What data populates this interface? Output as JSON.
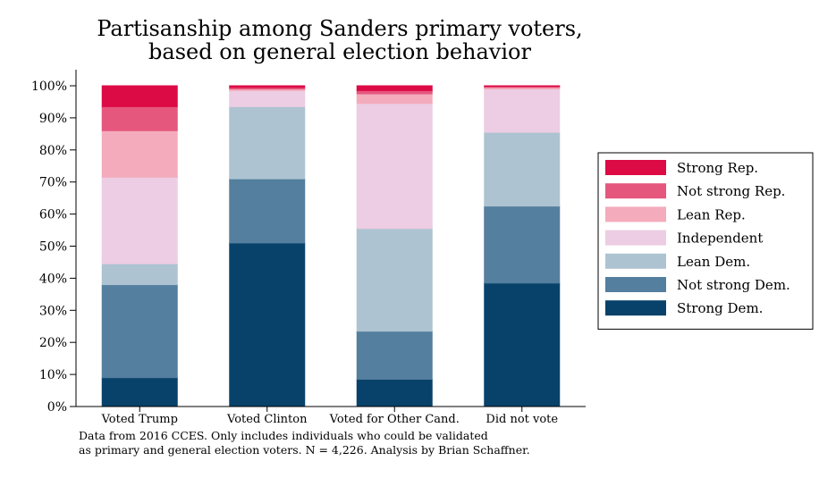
{
  "title_line1": "Partisanship among Sanders primary voters,",
  "title_line2": "based on general election behavior",
  "note_line1": "Data from 2016 CCES. Only includes individuals who could be validated",
  "note_line2": "as primary and general election voters. N = 4,226. Analysis by Brian Schaffner.",
  "chart_data": {
    "type": "bar",
    "stacked": true,
    "categories": [
      "Voted Trump",
      "Voted Clinton",
      "Voted for Other Cand.",
      "Did not vote"
    ],
    "ylim": [
      0,
      100
    ],
    "yticks": [
      "0%",
      "10%",
      "20%",
      "30%",
      "40%",
      "50%",
      "60%",
      "70%",
      "80%",
      "90%",
      "100%"
    ],
    "legend_position": "right",
    "series": [
      {
        "name": "Strong Dem.",
        "color": "#08426a",
        "values": [
          9,
          51,
          8.5,
          38.5
        ]
      },
      {
        "name": "Not strong Dem.",
        "color": "#547f9e",
        "values": [
          29,
          20,
          15,
          24
        ]
      },
      {
        "name": "Lean Dem.",
        "color": "#adc3d1",
        "values": [
          6.5,
          22.5,
          32,
          23
        ]
      },
      {
        "name": "Independent",
        "color": "#eccde3",
        "values": [
          27,
          5,
          39,
          13.5
        ]
      },
      {
        "name": "Lean Rep.",
        "color": "#f4abbc",
        "values": [
          14.5,
          0.5,
          3,
          0.5
        ]
      },
      {
        "name": "Not strong Rep.",
        "color": "#e5577d",
        "values": [
          7.5,
          0.5,
          1,
          0.3
        ]
      },
      {
        "name": "Strong Rep.",
        "color": "#dc0a45",
        "values": [
          6.5,
          0.5,
          1.5,
          0.2
        ]
      }
    ]
  }
}
